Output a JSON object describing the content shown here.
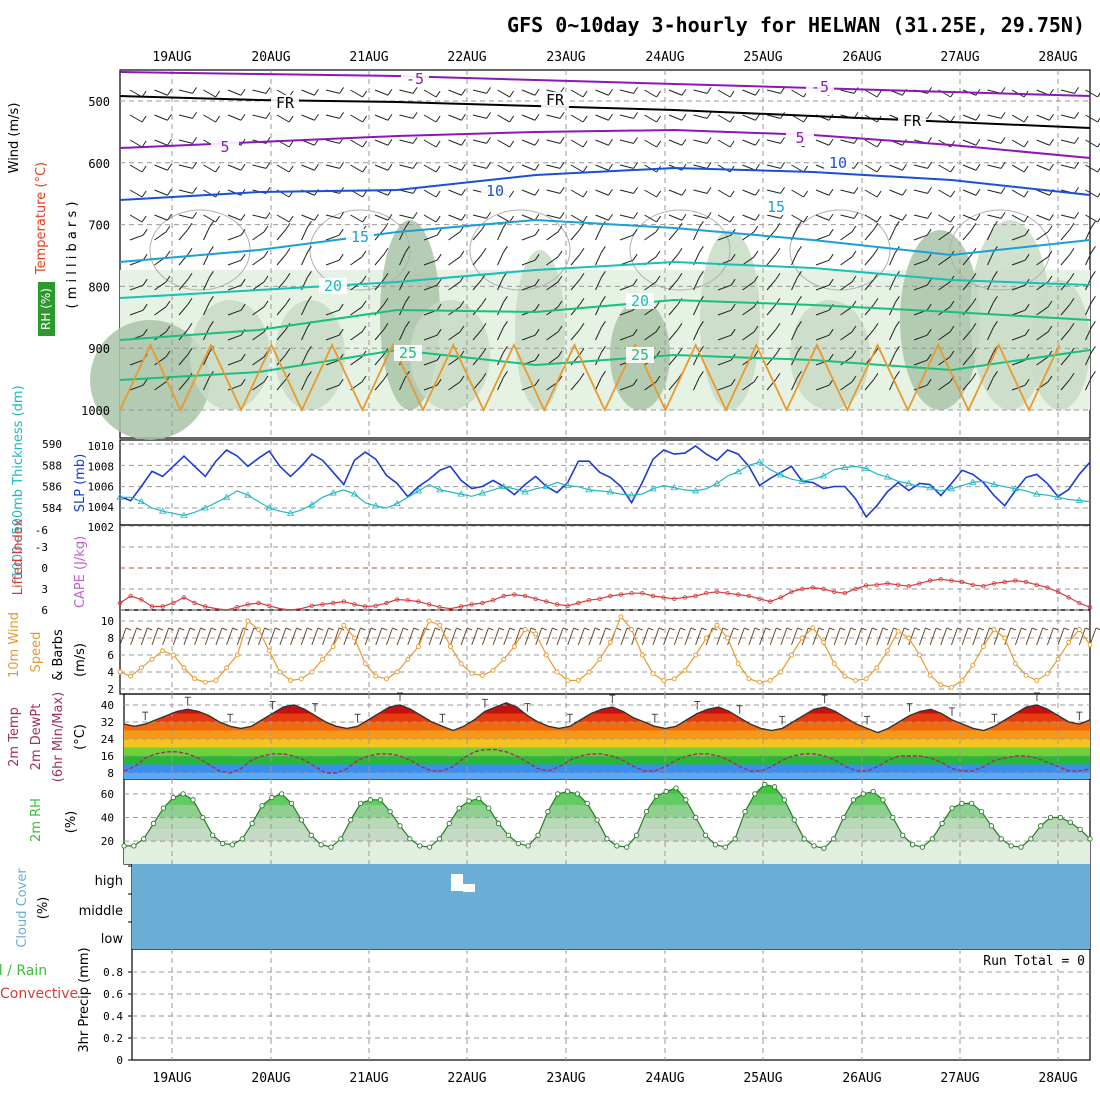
{
  "title": "GFS 0~10day 3-hourly for HELWAN (31.25E, 29.75N)",
  "dates": [
    "19AUG",
    "20AUG",
    "21AUG",
    "22AUG",
    "23AUG",
    "24AUG",
    "25AUG",
    "26AUG",
    "27AUG",
    "28AUG"
  ],
  "colors": {
    "grid": "#999999",
    "slp": "#1a3bd6",
    "thickness": "#20b8c0",
    "lifted_index": "#d43c3c",
    "wind10m": "#e89a2e",
    "rh": "#3cbd3c",
    "cloud": "#6aaed6",
    "temp_purple": "#8c18b4",
    "temp_blue": "#1a4fd8",
    "temp_lightblue": "#1aa0d8",
    "temp_cyan": "#18c0b8",
    "temp_green": "#18c080",
    "temp_orange": "#e89a2e"
  },
  "panels": {
    "upper": {
      "ylabel_wind": "Wind (m/s)",
      "ylabel_temp": "Temperature (°C)",
      "ylabel_rh": "RH (%)",
      "ylabel_mb": "( m i l l i b a r s )",
      "yticks": [
        "500",
        "600",
        "700",
        "800",
        "900",
        "1000"
      ],
      "contour_labels": [
        "-5",
        "-5",
        "FR",
        "FR",
        "FR",
        "5",
        "5",
        "10",
        "10",
        "15",
        "15",
        "20",
        "20",
        "25",
        "25"
      ]
    },
    "slp": {
      "ylabel_left": "1000~500mb Thickness (dm)",
      "ylabel_right": "SLP (mb)",
      "yticks_left": [
        "590",
        "588",
        "586",
        "584"
      ],
      "yticks_right": [
        "1010",
        "1008",
        "1006",
        "1004",
        "1002"
      ]
    },
    "li": {
      "ylabel_left": "Lifted Index",
      "ylabel_right": "CAPE (J/kg)",
      "yticks": [
        "6",
        "3",
        "0",
        "-3",
        "-6"
      ]
    },
    "wind": {
      "ylabel1": "10m Wind",
      "ylabel2": "Speed",
      "ylabel3": "& Barbs",
      "ylabel_unit": "(m/s)",
      "yticks": [
        "10",
        "8",
        "6",
        "4",
        "2"
      ]
    },
    "temp": {
      "ylabel1": "2m Temp",
      "ylabel2": "2m DewPt",
      "ylabel3": "(6hr Min/Max)",
      "ylabel_unit": "(°C)",
      "yticks": [
        "40",
        "32",
        "24",
        "16",
        "8"
      ]
    },
    "rh": {
      "ylabel": "2m RH",
      "ylabel_unit": "(%)",
      "yticks": [
        "60",
        "40",
        "20"
      ]
    },
    "cloud": {
      "ylabel": "Cloud Cover",
      "ylabel_unit": "(%)",
      "levels": [
        "high",
        "middle",
        "low"
      ]
    },
    "precip": {
      "ylabel1": "Total / Rain",
      "ylabel2": "Convective",
      "ylabel3": "3hr Precip (mm)",
      "yticks": [
        "0.8",
        "0.6",
        "0.4",
        "0.2",
        "0"
      ],
      "run_total": "Run Total = 0"
    }
  },
  "chart_data": [
    {
      "type": "line",
      "title": "",
      "series": [
        {
          "name": "SLP (mb)",
          "values": [
            1005,
            1004.6,
            1006,
            1007.5,
            1007,
            1008,
            1009,
            1008,
            1007,
            1008.5,
            1009.6,
            1009,
            1008,
            1008.8,
            1009.5,
            1008,
            1007,
            1008,
            1009.2,
            1008.6,
            1007.4,
            1006.2,
            1008.6,
            1009.4,
            1008.7,
            1007.1,
            1006.3,
            1005,
            1006,
            1006.7,
            1007.6,
            1008,
            1006.6,
            1005.8,
            1006,
            1006.6,
            1006,
            1005.2,
            1006.2,
            1007,
            1006,
            1005.4,
            1006.4,
            1008.5,
            1008.5,
            1007.4,
            1006.9,
            1006,
            1004.4,
            1006.4,
            1008.7,
            1009.6,
            1009.2,
            1009.3,
            1010,
            1009.2,
            1008.6,
            1009.6,
            1009.2,
            1008,
            1006.1,
            1006.8,
            1007.4,
            1008,
            1006.5,
            1006.4,
            1005.8,
            1006,
            1006,
            1004.8,
            1003,
            1004.1,
            1005.5,
            1006.4,
            1005.6,
            1006.3,
            1006.2,
            1005.1,
            1006.3,
            1007.6,
            1007.2,
            1006.4,
            1005.1,
            1004.1,
            1005.6,
            1006.9,
            1007.2,
            1006.3,
            1005,
            1005.7,
            1007.2,
            1008.4
          ]
        },
        {
          "name": "1000~500mb Thickness (dm)",
          "values": [
            585,
            585,
            584.6,
            584,
            583.7,
            583.5,
            583.3,
            583.6,
            584,
            584.5,
            585,
            585.6,
            585.2,
            584.6,
            584,
            583.7,
            583.5,
            583.8,
            584.3,
            585,
            585.4,
            585.7,
            585.3,
            584.5,
            584.2,
            584,
            584.4,
            585,
            585.6,
            586.2,
            585.7,
            585.5,
            585.3,
            585.1,
            585.4,
            585.7,
            586,
            585.8,
            585.5,
            585.8,
            586,
            586.4,
            586.1,
            586,
            585.7,
            585.6,
            585.5,
            585.3,
            585.2,
            585.3,
            585.8,
            586.1,
            585.9,
            585.7,
            585.6,
            585.8,
            586.3,
            587,
            587.4,
            588,
            588.3,
            587.6,
            587.1,
            586.7,
            586.5,
            586.7,
            587,
            587.6,
            587.8,
            587.9,
            587.7,
            587.2,
            586.9,
            586.5,
            586.3,
            586,
            585.9,
            585.6,
            585.8,
            586.1,
            586.4,
            586.5,
            586.2,
            586,
            585.8,
            585.6,
            585.3,
            585.2,
            585,
            584.8,
            584.7,
            584.6
          ]
        }
      ]
    },
    {
      "type": "line",
      "series": [
        {
          "name": "Lifted Index",
          "values": [
            5,
            4,
            4.5,
            5.5,
            5.5,
            5,
            4.2,
            5,
            5.5,
            5.8,
            6,
            5.6,
            5.2,
            5,
            5.4,
            5.8,
            6,
            5.8,
            5.4,
            5.2,
            5,
            4.8,
            5.2,
            5.5,
            5.4,
            5,
            4.5,
            4.6,
            4.8,
            5.2,
            5.6,
            5.8,
            5.5,
            5.2,
            5,
            4.6,
            4,
            3.8,
            4,
            4.4,
            4.8,
            5.2,
            5.4,
            5,
            4.6,
            4.4,
            4,
            3.8,
            3.6,
            3.6,
            4,
            4.2,
            4.4,
            4.2,
            4,
            3.6,
            3.4,
            3.6,
            3.8,
            4,
            4.4,
            4.8,
            4.2,
            3.4,
            3,
            2.8,
            3,
            3.4,
            3.6,
            3,
            2.5,
            2.4,
            2.2,
            2.4,
            2.6,
            2.2,
            1.8,
            1.6,
            1.8,
            2,
            2.4,
            2.6,
            2.2,
            2,
            1.8,
            2,
            2.4,
            2.8,
            3.4,
            4.2,
            5,
            5.6
          ]
        }
      ]
    },
    {
      "type": "line",
      "series": [
        {
          "name": "10m Wind Speed (m/s)",
          "values": [
            4,
            3.5,
            4.5,
            5.5,
            6.5,
            6,
            4.5,
            3.2,
            2.8,
            3,
            4.5,
            6,
            10,
            9,
            6.5,
            4,
            3,
            3.2,
            4,
            5.5,
            7,
            9.5,
            8,
            5,
            3.5,
            3.2,
            4,
            5.5,
            7,
            10,
            9.5,
            7,
            5,
            3.8,
            3.6,
            4.2,
            5.5,
            7,
            9,
            8.5,
            6,
            4,
            3,
            3,
            4,
            5.5,
            7.5,
            10.5,
            9,
            6,
            3.8,
            3,
            3.2,
            4.2,
            6,
            8,
            9.5,
            8,
            5,
            3.2,
            2.8,
            3,
            4,
            6,
            8,
            9.2,
            7.5,
            5,
            3.5,
            3,
            3.2,
            4.5,
            6.5,
            8.8,
            8,
            6,
            3.6,
            2.5,
            2.2,
            3,
            4.8,
            7,
            9,
            8,
            5,
            3.6,
            3,
            3.8,
            5.5,
            7.5,
            9,
            7.2
          ]
        }
      ]
    },
    {
      "type": "area",
      "series": [
        {
          "name": "2m Temp (°C)",
          "values": [
            31,
            30,
            31,
            33,
            35,
            37,
            38,
            37,
            35,
            32,
            30,
            29,
            30,
            33,
            36,
            39,
            40,
            38,
            35,
            32,
            30,
            29,
            30,
            33,
            36,
            39,
            40,
            38,
            35,
            32,
            30,
            28,
            30,
            33,
            37,
            39,
            41,
            39,
            35,
            32,
            30,
            29,
            30,
            33,
            36,
            38,
            39,
            37,
            34,
            32,
            30,
            29,
            30,
            33,
            36,
            38,
            39,
            37,
            34,
            31,
            29,
            28,
            29,
            32,
            35,
            38,
            39,
            37,
            34,
            31,
            29,
            27,
            29,
            32,
            35,
            37,
            38,
            36,
            33,
            31,
            29,
            28,
            30,
            33,
            36,
            39,
            40,
            38,
            35,
            32,
            31,
            33
          ]
        },
        {
          "name": "2m DewPt (°C)",
          "values": [
            9,
            11,
            15,
            17,
            18,
            18,
            17,
            15,
            12,
            9,
            8,
            10,
            14,
            16,
            17,
            17,
            16,
            14,
            11,
            8,
            8,
            10,
            14,
            16,
            17,
            17,
            16,
            14,
            11,
            9,
            9,
            11,
            15,
            18,
            19,
            19,
            18,
            16,
            13,
            10,
            9,
            11,
            14,
            16,
            17,
            17,
            16,
            14,
            11,
            9,
            9,
            11,
            14,
            16,
            17,
            17,
            16,
            14,
            11,
            9,
            9,
            11,
            14,
            16,
            17,
            17,
            16,
            14,
            11,
            9,
            9,
            11,
            14,
            16,
            16,
            16,
            15,
            13,
            10,
            9,
            9,
            11,
            14,
            15,
            16,
            16,
            15,
            13,
            11,
            9,
            9,
            10
          ]
        }
      ]
    },
    {
      "type": "area",
      "series": [
        {
          "name": "2m RH (%)",
          "values": [
            16,
            16,
            22,
            35,
            48,
            57,
            60,
            55,
            40,
            25,
            18,
            17,
            22,
            35,
            50,
            57,
            60,
            52,
            38,
            25,
            17,
            15,
            22,
            38,
            52,
            55,
            55,
            45,
            33,
            22,
            16,
            15,
            22,
            35,
            48,
            54,
            56,
            48,
            35,
            25,
            18,
            16,
            25,
            45,
            60,
            62,
            60,
            52,
            38,
            22,
            16,
            15,
            25,
            45,
            58,
            62,
            65,
            55,
            40,
            25,
            17,
            15,
            22,
            45,
            60,
            68,
            66,
            55,
            38,
            22,
            16,
            14,
            22,
            40,
            55,
            60,
            62,
            55,
            40,
            25,
            17,
            15,
            22,
            35,
            48,
            52,
            52,
            45,
            33,
            22,
            16,
            15,
            22,
            33,
            40,
            40,
            36,
            30,
            22
          ]
        }
      ]
    },
    {
      "type": "bar",
      "series": [
        {
          "name": "3hr Precip (mm)",
          "values": [
            0,
            0,
            0,
            0,
            0,
            0,
            0,
            0,
            0,
            0
          ]
        }
      ],
      "categories": [
        "19AUG",
        "20AUG",
        "21AUG",
        "22AUG",
        "23AUG",
        "24AUG",
        "25AUG",
        "26AUG",
        "27AUG",
        "28AUG"
      ]
    }
  ]
}
